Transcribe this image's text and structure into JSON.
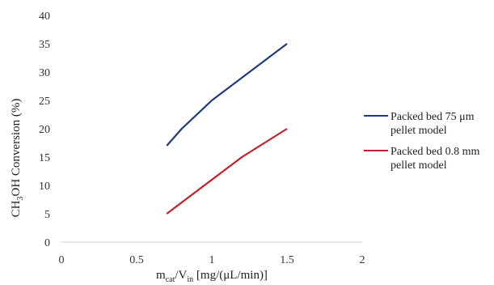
{
  "chart_data": {
    "type": "line",
    "xlabel": "m_cat/V_in [mg/(μL/min)]",
    "xlabel_parts": {
      "base1": "m",
      "sub1": "cat",
      "mid": "/V",
      "sub2": "in",
      "rest": " [mg/(μL/min)]"
    },
    "ylabel": "CH3OH Conversion (%)",
    "ylabel_parts": {
      "pre": "CH",
      "sub": "3",
      "post": "OH Conversion (%)"
    },
    "xlim": [
      0,
      2
    ],
    "ylim": [
      0,
      40
    ],
    "xticks": [
      "0",
      "0.5",
      "1",
      "1.5",
      "2"
    ],
    "yticks": [
      "0",
      "5",
      "10",
      "15",
      "20",
      "25",
      "30",
      "35",
      "40"
    ],
    "grid": false,
    "legend_position": "right",
    "series": [
      {
        "name": "Packed bed 75 μm pellet model",
        "legend_lines": [
          "Packed bed 75 μm",
          "pellet model"
        ],
        "color": "#1f3a7a",
        "x": [
          0.7,
          0.8,
          1.0,
          1.2,
          1.5
        ],
        "y": [
          17,
          20,
          25,
          29,
          35
        ]
      },
      {
        "name": "Packed bed 0.8 mm pellet model",
        "legend_lines": [
          "Packed bed 0.8 mm",
          "pellet model"
        ],
        "color": "#c0202a",
        "x": [
          0.7,
          0.8,
          1.0,
          1.2,
          1.5
        ],
        "y": [
          5,
          7,
          11,
          15,
          20
        ]
      }
    ]
  }
}
